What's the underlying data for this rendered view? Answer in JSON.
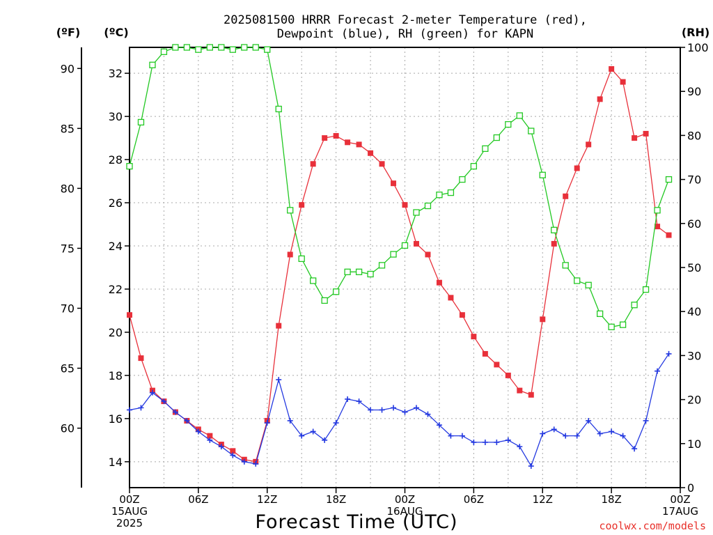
{
  "chart_data": {
    "type": "line",
    "title_line1": "2025081500 HRRR Forecast 2-meter Temperature (red),",
    "title_line2": "Dewpoint (blue), RH (green) for KAPN",
    "unit_f": "(ºF)",
    "unit_c": "(ºC)",
    "unit_rh": "(RH)",
    "xlabel": "Forecast Time (UTC)",
    "credit": "coolwx.com/models",
    "x_hours_range": [
      0,
      48
    ],
    "celsius_range": [
      12.8,
      33.2
    ],
    "rh_range": [
      0,
      100
    ],
    "fahrenheit_range": [
      55.04,
      91.76
    ],
    "x_ticks": [
      {
        "hour": 0,
        "lines": [
          "00Z",
          "15AUG",
          "2025"
        ]
      },
      {
        "hour": 6,
        "lines": [
          "06Z"
        ]
      },
      {
        "hour": 12,
        "lines": [
          "12Z"
        ]
      },
      {
        "hour": 18,
        "lines": [
          "18Z"
        ]
      },
      {
        "hour": 24,
        "lines": [
          "00Z",
          "16AUG"
        ]
      },
      {
        "hour": 30,
        "lines": [
          "06Z"
        ]
      },
      {
        "hour": 36,
        "lines": [
          "12Z"
        ]
      },
      {
        "hour": 42,
        "lines": [
          "18Z"
        ]
      },
      {
        "hour": 48,
        "lines": [
          "00Z",
          "17AUG"
        ]
      }
    ],
    "celsius_ticks": [
      "14",
      "16",
      "18",
      "20",
      "22",
      "24",
      "26",
      "28",
      "30",
      "32"
    ],
    "fahrenheit_ticks": [
      "60",
      "65",
      "70",
      "75",
      "80",
      "85",
      "90"
    ],
    "rh_ticks": [
      "0",
      "10",
      "20",
      "30",
      "40",
      "50",
      "60",
      "70",
      "80",
      "90",
      "100"
    ],
    "series": [
      {
        "name": "Temperature",
        "color": "#e8303a",
        "marker": "filled-square",
        "unit": "C",
        "values": [
          20.8,
          18.8,
          17.3,
          16.8,
          16.3,
          15.9,
          15.5,
          15.2,
          14.8,
          14.5,
          14.1,
          14.0,
          15.9,
          20.3,
          23.6,
          25.9,
          27.8,
          29.0,
          29.1,
          28.8,
          28.7,
          28.3,
          27.8,
          26.9,
          25.9,
          24.1,
          23.6,
          22.3,
          21.6,
          20.8,
          19.8,
          19.0,
          18.5,
          18.0,
          17.3,
          17.1,
          20.6,
          24.1,
          26.3,
          27.6,
          28.7,
          30.8,
          32.2,
          31.6,
          29.0,
          29.2,
          24.9,
          24.5
        ]
      },
      {
        "name": "Dewpoint",
        "color": "#2338e0",
        "marker": "plus",
        "unit": "C",
        "values": [
          16.4,
          16.5,
          17.2,
          16.8,
          16.3,
          15.9,
          15.4,
          15.0,
          14.7,
          14.3,
          14.0,
          13.9,
          15.8,
          17.8,
          15.9,
          15.2,
          15.4,
          15.0,
          15.8,
          16.9,
          16.8,
          16.4,
          16.4,
          16.5,
          16.3,
          16.5,
          16.2,
          15.7,
          15.2,
          15.2,
          14.9,
          14.9,
          14.9,
          15.0,
          14.7,
          13.8,
          15.3,
          15.5,
          15.2,
          15.2,
          15.9,
          15.3,
          15.4,
          15.2,
          14.6,
          15.9,
          18.2,
          19.0
        ]
      },
      {
        "name": "RH",
        "color": "#22c822",
        "marker": "open-square",
        "unit": "%",
        "values": [
          73,
          83,
          96,
          99,
          100,
          100,
          99.5,
          100,
          100,
          99.5,
          100,
          100,
          99.5,
          86,
          63,
          52,
          47,
          42.5,
          44.5,
          49,
          49,
          48.5,
          50.5,
          53,
          55,
          62.5,
          64,
          66.5,
          67,
          70,
          73,
          77,
          79.5,
          82.5,
          84.5,
          81,
          71,
          58.5,
          50.5,
          47,
          46,
          39.5,
          36.5,
          37,
          41.5,
          45,
          63,
          70
        ]
      }
    ]
  }
}
